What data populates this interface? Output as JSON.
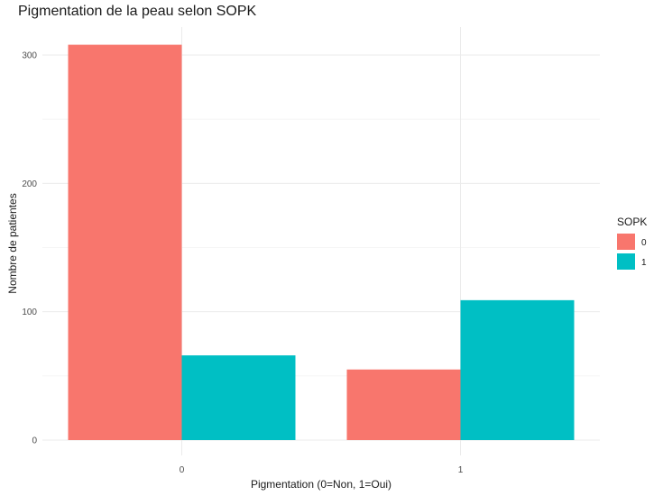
{
  "chart_data": {
    "type": "bar",
    "title": "Pigmentation de la peau selon SOPK",
    "xlabel": "Pigmentation (0=Non, 1=Oui)",
    "ylabel": "Nombre de patientes",
    "categories": [
      "0",
      "1"
    ],
    "series": [
      {
        "name": "0",
        "color": "#F8766D",
        "values": [
          308,
          55
        ]
      },
      {
        "name": "1",
        "color": "#00BFC4",
        "values": [
          66,
          109
        ]
      }
    ],
    "ylim": [
      0,
      320
    ],
    "yticks": [
      0,
      100,
      200,
      300
    ],
    "grid": true,
    "legend": {
      "title": "SOPK",
      "position": "right"
    }
  }
}
